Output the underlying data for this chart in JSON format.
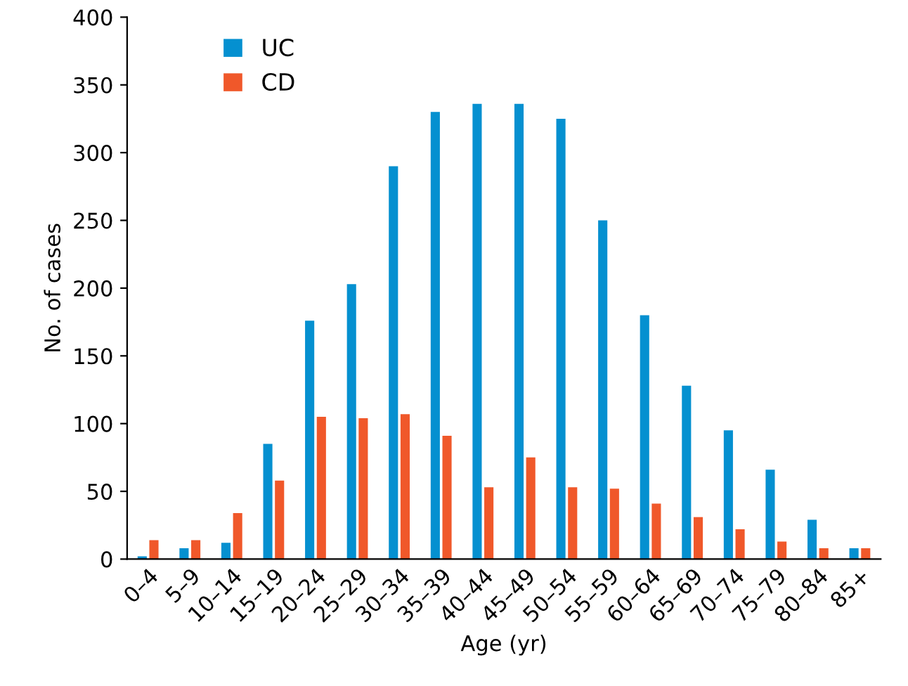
{
  "chart_data": {
    "type": "bar",
    "xlabel": "Age (yr)",
    "ylabel": "No. of cases",
    "categories": [
      "0–4",
      "5–9",
      "10–14",
      "15–19",
      "20–24",
      "25–29",
      "30–34",
      "35–39",
      "40–44",
      "45–49",
      "50–54",
      "55–59",
      "60–64",
      "65–69",
      "70–74",
      "75–79",
      "80–84",
      "85+"
    ],
    "series": [
      {
        "name": "UC",
        "color": "#0590d0",
        "values": [
          2,
          8,
          12,
          85,
          176,
          203,
          290,
          330,
          336,
          336,
          325,
          250,
          180,
          128,
          95,
          66,
          29,
          8
        ]
      },
      {
        "name": "CD",
        "color": "#f0582a",
        "values": [
          14,
          14,
          34,
          58,
          105,
          104,
          107,
          91,
          53,
          75,
          53,
          52,
          41,
          31,
          22,
          13,
          8,
          8
        ]
      }
    ],
    "ylim": [
      0,
      400
    ],
    "yticks": [
      0,
      50,
      100,
      150,
      200,
      250,
      300,
      350,
      400
    ],
    "grid": false,
    "legend": "top left"
  }
}
